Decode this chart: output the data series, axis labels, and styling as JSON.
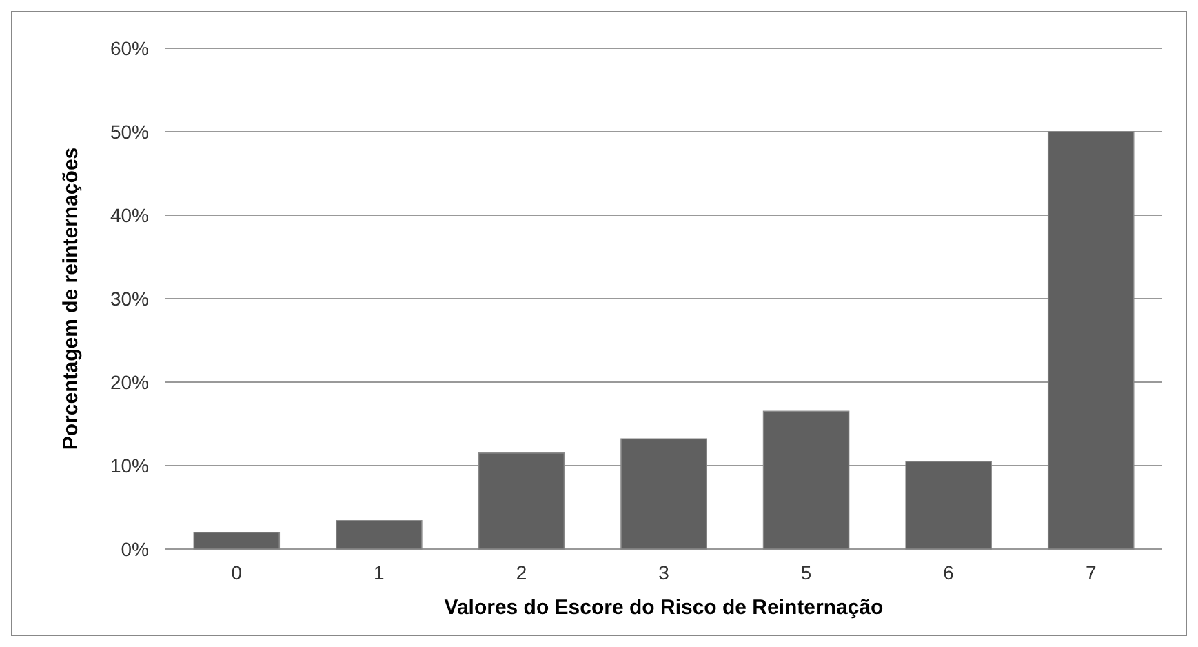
{
  "chart_data": {
    "type": "bar",
    "xlabel": "Valores do Escore do Risco de Reinternação",
    "ylabel": "Porcentagem de reinternações",
    "categories": [
      "0",
      "1",
      "2",
      "3",
      "5",
      "6",
      "7"
    ],
    "values": [
      2.0,
      3.4,
      11.5,
      13.2,
      16.5,
      10.5,
      50
    ],
    "color": "#606060",
    "ylim": [
      0,
      60
    ],
    "yticks": [
      {
        "value": 0,
        "label": "0%"
      },
      {
        "value": 10,
        "label": "10%"
      },
      {
        "value": 20,
        "label": "20%"
      },
      {
        "value": 30,
        "label": "30%"
      },
      {
        "value": 40,
        "label": "40%"
      },
      {
        "value": 50,
        "label": "50%"
      },
      {
        "value": 60,
        "label": "60%"
      }
    ],
    "grid": "y"
  }
}
